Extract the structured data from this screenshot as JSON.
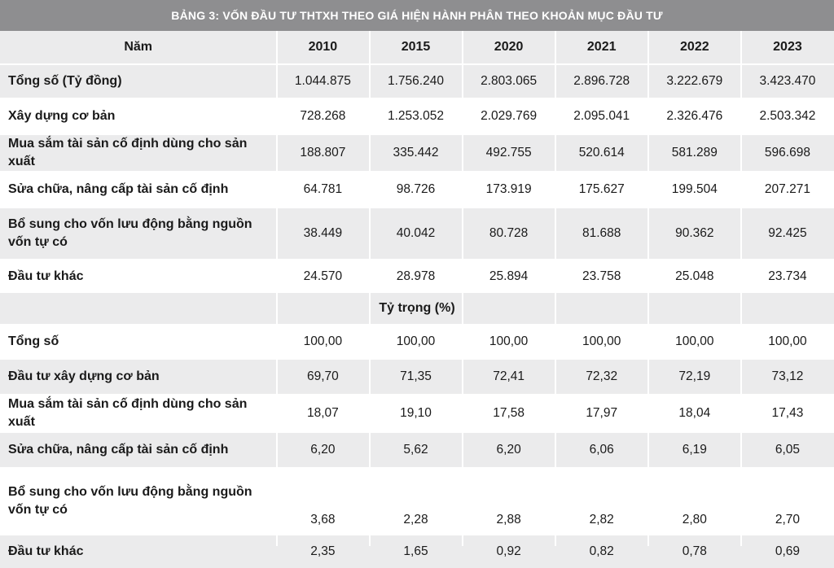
{
  "title": "BẢNG 3: VỐN ĐẦU TƯ THTXH THEO GIÁ HIỆN HÀNH PHÂN THEO KHOẢN MỤC ĐẦU TƯ",
  "header": {
    "label": "Năm",
    "years": [
      "2010",
      "2015",
      "2020",
      "2021",
      "2022",
      "2023"
    ]
  },
  "value_rows": [
    {
      "label": "Tổng số (Tỷ đồng)",
      "values": [
        "1.044.875",
        "1.756.240",
        "2.803.065",
        "2.896.728",
        "3.222.679",
        "3.423.470"
      ]
    },
    {
      "label": "Xây dựng cơ bản",
      "values": [
        "728.268",
        "1.253.052",
        "2.029.769",
        "2.095.041",
        "2.326.476",
        "2.503.342"
      ]
    },
    {
      "label": "Mua sắm tài sản cố định dùng cho sản xuất",
      "values": [
        "188.807",
        "335.442",
        "492.755",
        "520.614",
        "581.289",
        "596.698"
      ]
    },
    {
      "label": "Sửa chữa, nâng cấp tài sản cố định",
      "values": [
        "64.781",
        "98.726",
        "173.919",
        "175.627",
        "199.504",
        "207.271"
      ]
    },
    {
      "label": "Bổ sung cho vốn lưu động bằng nguồn vốn tự có",
      "values": [
        "38.449",
        "40.042",
        "80.728",
        "81.688",
        "90.362",
        "92.425"
      ]
    },
    {
      "label": "Đầu tư khác",
      "values": [
        "24.570",
        "28.978",
        "25.894",
        "23.758",
        "25.048",
        "23.734"
      ]
    }
  ],
  "share_section_label": "Tỷ trọng (%)",
  "share_rows": [
    {
      "label": "Tổng số",
      "values": [
        "100,00",
        "100,00",
        "100,00",
        "100,00",
        "100,00",
        "100,00"
      ]
    },
    {
      "label": "Đầu tư xây dựng cơ bản",
      "values": [
        "69,70",
        "71,35",
        "72,41",
        "72,32",
        "72,19",
        "73,12"
      ]
    },
    {
      "label": "Mua sắm tài sản cố định dùng cho sản xuất",
      "values": [
        "18,07",
        "19,10",
        "17,58",
        "17,97",
        "18,04",
        "17,43"
      ]
    },
    {
      "label": "Sửa chữa, nâng cấp tài sản cố định",
      "values": [
        "6,20",
        "5,62",
        "6,20",
        "6,06",
        "6,19",
        "6,05"
      ]
    },
    {
      "label": "Bổ sung cho vốn lưu động bằng nguồn vốn tự có",
      "values": [
        "3,68",
        "2,28",
        "2,88",
        "2,82",
        "2,80",
        "2,70"
      ]
    },
    {
      "label": "Đầu tư khác",
      "values": [
        "2,35",
        "1,65",
        "0,92",
        "0,82",
        "0,78",
        "0,69"
      ]
    }
  ]
}
